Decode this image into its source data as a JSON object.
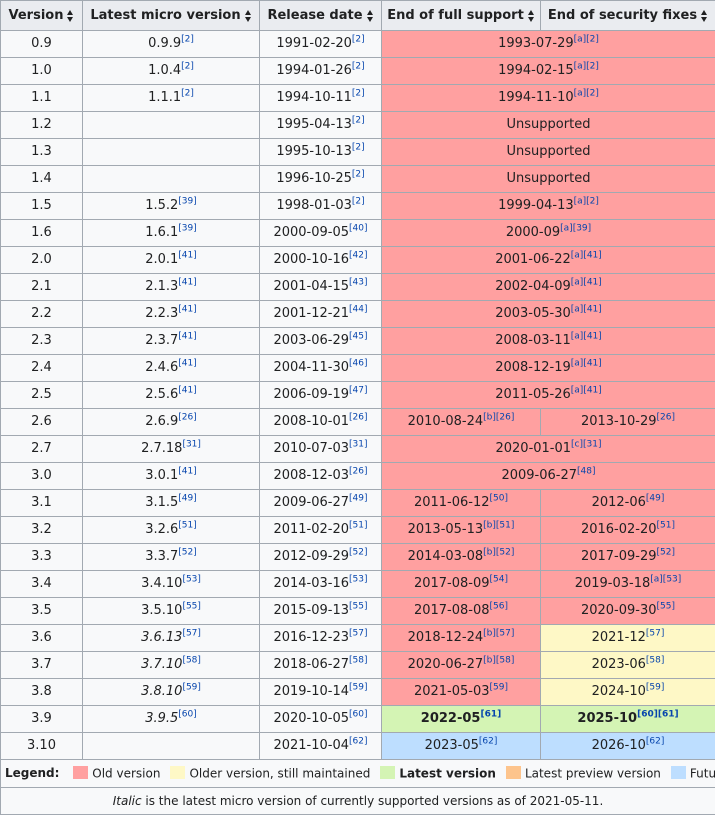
{
  "headers": {
    "version": "Version",
    "micro": "Latest micro version",
    "release": "Release date",
    "full": "End of full support",
    "security": "End of security fixes"
  },
  "rows": [
    {
      "version": "0.9",
      "micro": "0.9.9",
      "micro_ref": "[2]",
      "release": "1991-02-20",
      "release_ref": "[2]",
      "full": "1993-07-29",
      "full_ref": "[a][2]",
      "security": null
    },
    {
      "version": "1.0",
      "micro": "1.0.4",
      "micro_ref": "[2]",
      "release": "1994-01-26",
      "release_ref": "[2]",
      "full": "1994-02-15",
      "full_ref": "[a][2]",
      "security": null
    },
    {
      "version": "1.1",
      "micro": "1.1.1",
      "micro_ref": "[2]",
      "release": "1994-10-11",
      "release_ref": "[2]",
      "full": "1994-11-10",
      "full_ref": "[a][2]",
      "security": null
    },
    {
      "version": "1.2",
      "micro": "",
      "micro_ref": "",
      "release": "1995-04-13",
      "release_ref": "[2]",
      "full": "Unsupported",
      "full_ref": "",
      "security": null
    },
    {
      "version": "1.3",
      "micro": "",
      "micro_ref": "",
      "release": "1995-10-13",
      "release_ref": "[2]",
      "full": "Unsupported",
      "full_ref": "",
      "security": null
    },
    {
      "version": "1.4",
      "micro": "",
      "micro_ref": "",
      "release": "1996-10-25",
      "release_ref": "[2]",
      "full": "Unsupported",
      "full_ref": "",
      "security": null
    },
    {
      "version": "1.5",
      "micro": "1.5.2",
      "micro_ref": "[39]",
      "release": "1998-01-03",
      "release_ref": "[2]",
      "full": "1999-04-13",
      "full_ref": "[a][2]",
      "security": null
    },
    {
      "version": "1.6",
      "micro": "1.6.1",
      "micro_ref": "[39]",
      "release": "2000-09-05",
      "release_ref": "[40]",
      "full": "2000-09",
      "full_ref": "[a][39]",
      "security": null
    },
    {
      "version": "2.0",
      "micro": "2.0.1",
      "micro_ref": "[41]",
      "release": "2000-10-16",
      "release_ref": "[42]",
      "full": "2001-06-22",
      "full_ref": "[a][41]",
      "security": null
    },
    {
      "version": "2.1",
      "micro": "2.1.3",
      "micro_ref": "[41]",
      "release": "2001-04-15",
      "release_ref": "[43]",
      "full": "2002-04-09",
      "full_ref": "[a][41]",
      "security": null
    },
    {
      "version": "2.2",
      "micro": "2.2.3",
      "micro_ref": "[41]",
      "release": "2001-12-21",
      "release_ref": "[44]",
      "full": "2003-05-30",
      "full_ref": "[a][41]",
      "security": null
    },
    {
      "version": "2.3",
      "micro": "2.3.7",
      "micro_ref": "[41]",
      "release": "2003-06-29",
      "release_ref": "[45]",
      "full": "2008-03-11",
      "full_ref": "[a][41]",
      "security": null
    },
    {
      "version": "2.4",
      "micro": "2.4.6",
      "micro_ref": "[41]",
      "release": "2004-11-30",
      "release_ref": "[46]",
      "full": "2008-12-19",
      "full_ref": "[a][41]",
      "security": null
    },
    {
      "version": "2.5",
      "micro": "2.5.6",
      "micro_ref": "[41]",
      "release": "2006-09-19",
      "release_ref": "[47]",
      "full": "2011-05-26",
      "full_ref": "[a][41]",
      "security": null
    },
    {
      "version": "2.6",
      "micro": "2.6.9",
      "micro_ref": "[26]",
      "release": "2008-10-01",
      "release_ref": "[26]",
      "full": "2010-08-24",
      "full_ref": "[b][26]",
      "security": "2013-10-29",
      "security_ref": "[26]",
      "sec_status": "old"
    },
    {
      "version": "2.7",
      "micro": "2.7.18",
      "micro_ref": "[31]",
      "release": "2010-07-03",
      "release_ref": "[31]",
      "full": "2020-01-01",
      "full_ref": "[c][31]",
      "security": null
    },
    {
      "version": "3.0",
      "micro": "3.0.1",
      "micro_ref": "[41]",
      "release": "2008-12-03",
      "release_ref": "[26]",
      "full": "2009-06-27",
      "full_ref": "[48]",
      "security": null
    },
    {
      "version": "3.1",
      "micro": "3.1.5",
      "micro_ref": "[49]",
      "release": "2009-06-27",
      "release_ref": "[49]",
      "full": "2011-06-12",
      "full_ref": "[50]",
      "security": "2012-06",
      "security_ref": "[49]",
      "sec_status": "old"
    },
    {
      "version": "3.2",
      "micro": "3.2.6",
      "micro_ref": "[51]",
      "release": "2011-02-20",
      "release_ref": "[51]",
      "full": "2013-05-13",
      "full_ref": "[b][51]",
      "security": "2016-02-20",
      "security_ref": "[51]",
      "sec_status": "old"
    },
    {
      "version": "3.3",
      "micro": "3.3.7",
      "micro_ref": "[52]",
      "release": "2012-09-29",
      "release_ref": "[52]",
      "full": "2014-03-08",
      "full_ref": "[b][52]",
      "security": "2017-09-29",
      "security_ref": "[52]",
      "sec_status": "old"
    },
    {
      "version": "3.4",
      "micro": "3.4.10",
      "micro_ref": "[53]",
      "release": "2014-03-16",
      "release_ref": "[53]",
      "full": "2017-08-09",
      "full_ref": "[54]",
      "security": "2019-03-18",
      "security_ref": "[a][53]",
      "sec_status": "old"
    },
    {
      "version": "3.5",
      "micro": "3.5.10",
      "micro_ref": "[55]",
      "release": "2015-09-13",
      "release_ref": "[55]",
      "full": "2017-08-08",
      "full_ref": "[56]",
      "security": "2020-09-30",
      "security_ref": "[55]",
      "sec_status": "old"
    },
    {
      "version": "3.6",
      "micro": "3.6.13",
      "micro_ref": "[57]",
      "micro_italic": true,
      "release": "2016-12-23",
      "release_ref": "[57]",
      "full": "2018-12-24",
      "full_ref": "[b][57]",
      "security": "2021-12",
      "security_ref": "[57]",
      "sec_status": "older"
    },
    {
      "version": "3.7",
      "micro": "3.7.10",
      "micro_ref": "[58]",
      "micro_italic": true,
      "release": "2018-06-27",
      "release_ref": "[58]",
      "full": "2020-06-27",
      "full_ref": "[b][58]",
      "security": "2023-06",
      "security_ref": "[58]",
      "sec_status": "older"
    },
    {
      "version": "3.8",
      "micro": "3.8.10",
      "micro_ref": "[59]",
      "micro_italic": true,
      "release": "2019-10-14",
      "release_ref": "[59]",
      "full": "2021-05-03",
      "full_ref": "[59]",
      "security": "2024-10",
      "security_ref": "[59]",
      "sec_status": "older"
    },
    {
      "version": "3.9",
      "micro": "3.9.5",
      "micro_ref": "[60]",
      "micro_italic": true,
      "release": "2020-10-05",
      "release_ref": "[60]",
      "full": "2022-05",
      "full_ref": "[61]",
      "full_status": "latest",
      "security": "2025-10",
      "security_ref": "[60][61]",
      "sec_status": "latest"
    },
    {
      "version": "3.10",
      "micro": "",
      "micro_ref": "",
      "release": "2021-10-04",
      "release_ref": "[62]",
      "full": "2023-05",
      "full_ref": "[62]",
      "full_status": "future",
      "security": "2026-10",
      "security_ref": "[62]",
      "sec_status": "future"
    }
  ],
  "legend": {
    "title": "Legend:",
    "items": [
      {
        "label": "Old version",
        "color": "#ffa0a0"
      },
      {
        "label": "Older version, still maintained",
        "color": "#fef8c6"
      },
      {
        "label": "Latest version",
        "color": "#d4f4b4",
        "bold": true
      },
      {
        "label": "Latest preview version",
        "color": "#fdc48c"
      },
      {
        "label": "Future release",
        "color": "#bddeff"
      }
    ]
  },
  "footnote": {
    "italic_word": "Italic",
    "text": " is the latest micro version of currently supported versions as of 2021-05-11."
  }
}
